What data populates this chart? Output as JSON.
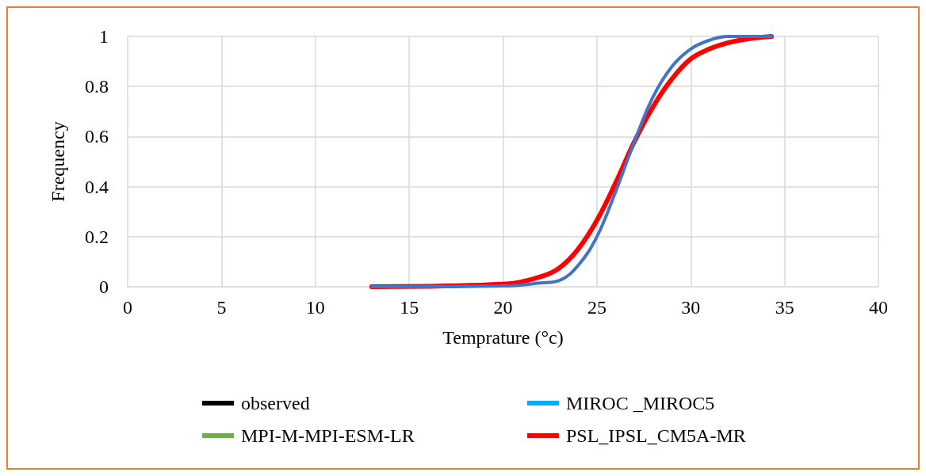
{
  "chart_data": {
    "type": "line",
    "xlabel": "Temprature (°c)",
    "ylabel": "Frequency",
    "xlim": [
      0,
      40
    ],
    "xticks": [
      0,
      5,
      10,
      15,
      20,
      25,
      30,
      35,
      40
    ],
    "ylim": [
      0,
      1
    ],
    "yticks": [
      0,
      0.2,
      0.4,
      0.6,
      0.8,
      1
    ],
    "grid": true,
    "legend": "bottom",
    "marker": "none",
    "line_style": "solid",
    "x": [
      13,
      20,
      22,
      23,
      24,
      25,
      26,
      27,
      28,
      29,
      30,
      31,
      32,
      33,
      34.3
    ],
    "series": [
      {
        "name": "observed",
        "color": "#000000",
        "values": [
          null,
          null,
          null,
          null,
          null,
          null,
          null,
          null,
          null,
          null,
          null,
          null,
          null,
          null,
          null
        ]
      },
      {
        "name": "MIROC _MIROC5",
        "color": "#00b0f0",
        "values": [
          null,
          null,
          null,
          null,
          null,
          null,
          null,
          null,
          null,
          null,
          null,
          null,
          null,
          null,
          null
        ]
      },
      {
        "name": "MPI-M-MPI-ESM-LR",
        "color": "#70ad47",
        "values": [
          null,
          null,
          null,
          null,
          null,
          null,
          null,
          null,
          null,
          null,
          null,
          null,
          null,
          null,
          null
        ]
      },
      {
        "name": "PSL_IPSL_CM5A-MR",
        "color": "#ff0000",
        "values": [
          0,
          0.01,
          0.04,
          0.075,
          0.15,
          0.265,
          0.415,
          0.58,
          0.72,
          0.83,
          0.91,
          0.95,
          0.975,
          0.99,
          1
        ]
      },
      {
        "color": "#4472c4",
        "values": [
          0,
          0.003,
          0.015,
          0.025,
          0.085,
          0.2,
          0.38,
          0.58,
          0.76,
          0.88,
          0.95,
          0.985,
          1,
          1,
          1
        ]
      }
    ]
  }
}
